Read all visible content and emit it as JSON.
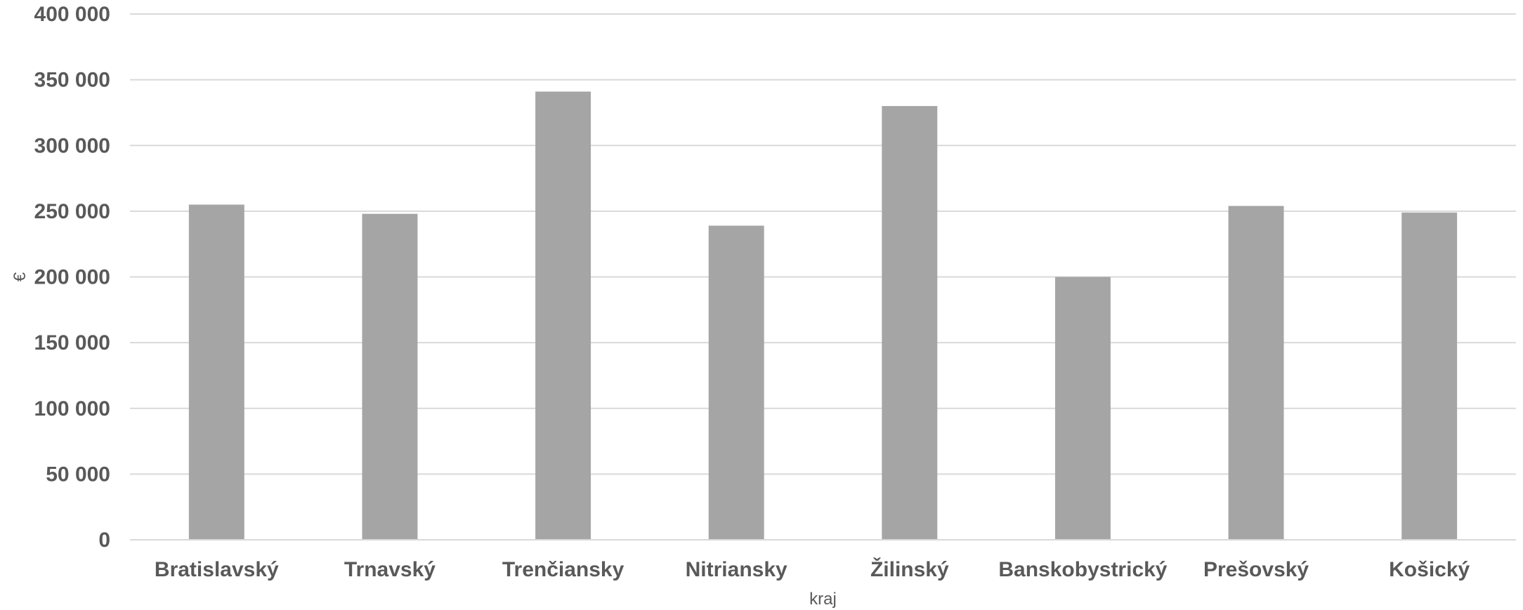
{
  "chart_data": {
    "type": "bar",
    "title": "",
    "xlabel": "kraj",
    "ylabel": "€",
    "ylim": [
      0,
      400000
    ],
    "y_ticks": [
      "0",
      "50 000",
      "100 000",
      "150 000",
      "200 000",
      "250 000",
      "300 000",
      "350 000",
      "400 000"
    ],
    "y_tick_values": [
      0,
      50000,
      100000,
      150000,
      200000,
      250000,
      300000,
      350000,
      400000
    ],
    "categories": [
      "Bratislavský",
      "Trnavský",
      "Trenčiansky",
      "Nitriansky",
      "Žilinský",
      "Banskobystrický",
      "Prešovský",
      "Košický"
    ],
    "values": [
      255000,
      248000,
      341000,
      239000,
      330000,
      200000,
      254000,
      249000
    ],
    "grid": true,
    "legend": "none",
    "bar_color": "#a5a5a5"
  }
}
